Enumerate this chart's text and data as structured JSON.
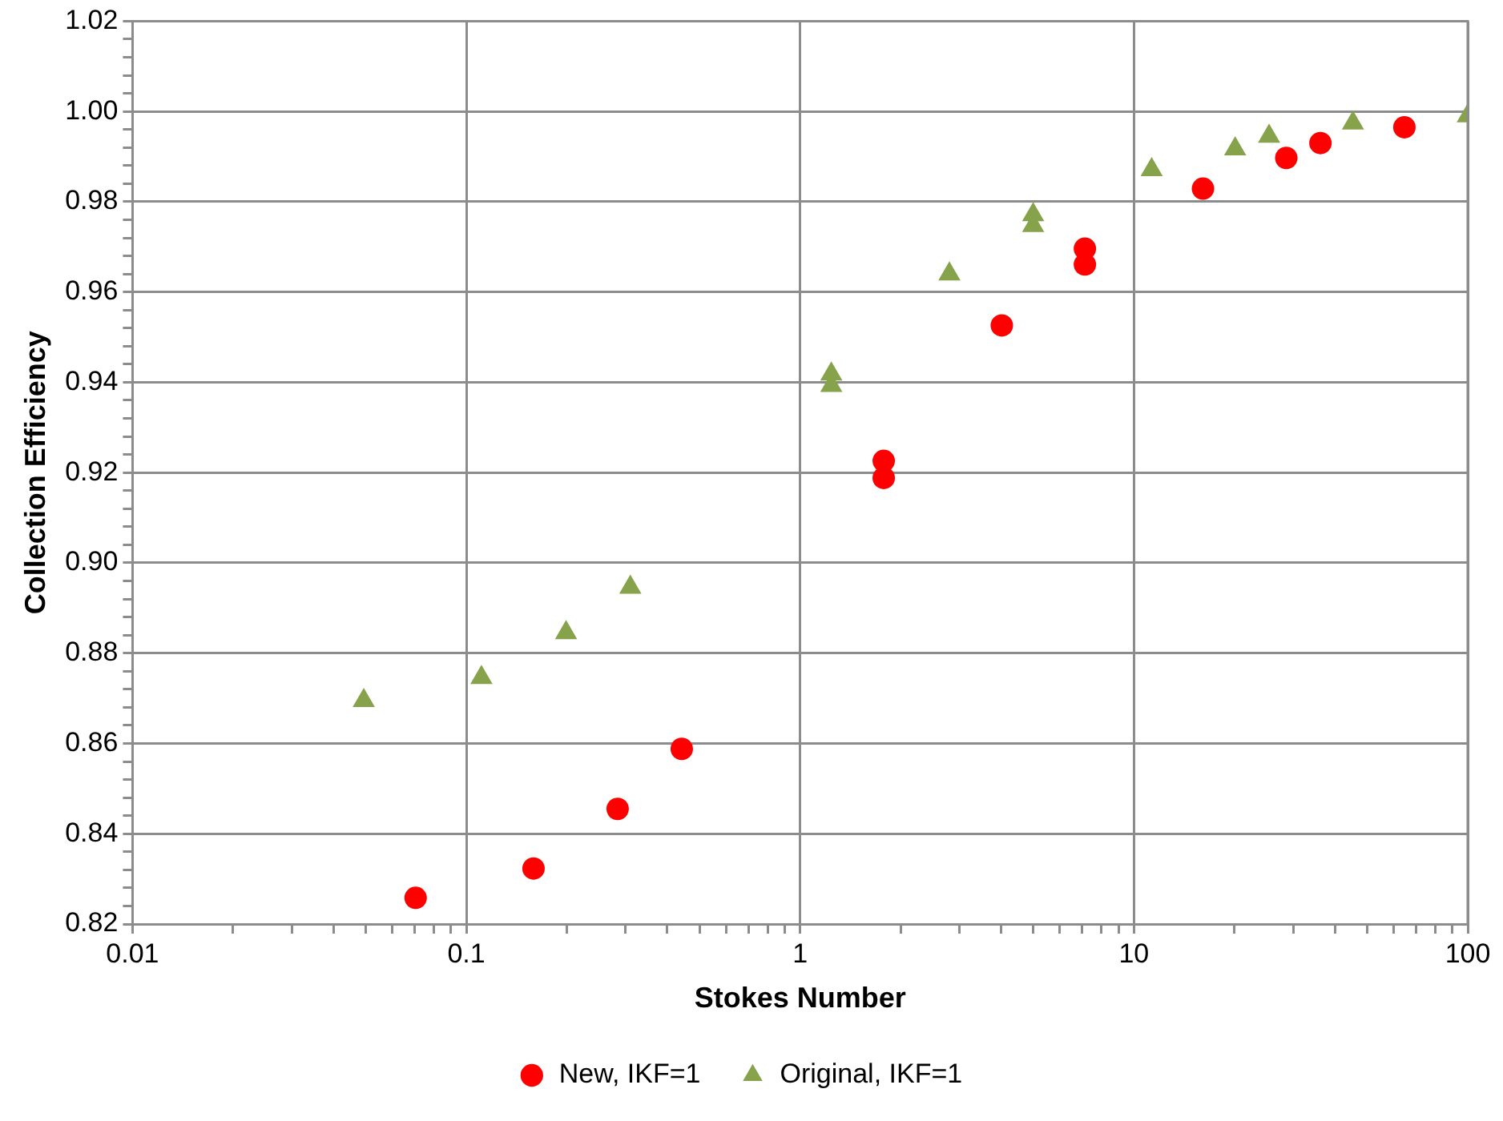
{
  "chart_data": {
    "type": "scatter",
    "xlabel": "Stokes Number",
    "ylabel": "Collection Efficiency",
    "log": "x",
    "grid": true,
    "legend": "bottom",
    "xlim": [
      0.01,
      100
    ],
    "ylim": [
      0.82,
      1.02
    ],
    "xticks": [
      0.01,
      {
        "value": 0.02,
        "label": null
      },
      {
        "value": 0.03,
        "label": null
      },
      {
        "value": 0.04,
        "label": null
      },
      {
        "value": 0.05,
        "label": null
      },
      {
        "value": 0.06,
        "label": null
      },
      {
        "value": 0.07,
        "label": null
      },
      {
        "value": 0.08,
        "label": null
      },
      {
        "value": 0.09,
        "label": null
      },
      0.1,
      {
        "value": 0.2,
        "label": null
      },
      {
        "value": 0.3,
        "label": null
      },
      {
        "value": 0.4,
        "label": null
      },
      {
        "value": 0.5,
        "label": null
      },
      {
        "value": 0.6,
        "label": null
      },
      {
        "value": 0.7,
        "label": null
      },
      {
        "value": 0.8,
        "label": null
      },
      {
        "value": 0.9,
        "label": null
      },
      1,
      {
        "value": 2,
        "label": null
      },
      {
        "value": 3,
        "label": null
      },
      {
        "value": 4,
        "label": null
      },
      {
        "value": 5,
        "label": null
      },
      {
        "value": 6,
        "label": null
      },
      {
        "value": 7,
        "label": null
      },
      {
        "value": 8,
        "label": null
      },
      {
        "value": 9,
        "label": null
      },
      10,
      {
        "value": 20,
        "label": null
      },
      {
        "value": 30,
        "label": null
      },
      {
        "value": 40,
        "label": null
      },
      {
        "value": 50,
        "label": null
      },
      {
        "value": 60,
        "label": null
      },
      {
        "value": 70,
        "label": null
      },
      {
        "value": 80,
        "label": null
      },
      {
        "value": 90,
        "label": null
      },
      100
    ],
    "yticks": [
      0.82,
      {
        "value": 0.824,
        "label": null
      },
      {
        "value": 0.828,
        "label": null
      },
      {
        "value": 0.832,
        "label": null
      },
      {
        "value": 0.836,
        "label": null
      },
      0.84,
      {
        "value": 0.844,
        "label": null
      },
      {
        "value": 0.848,
        "label": null
      },
      {
        "value": 0.852,
        "label": null
      },
      {
        "value": 0.856,
        "label": null
      },
      0.86,
      {
        "value": 0.864,
        "label": null
      },
      {
        "value": 0.868,
        "label": null
      },
      {
        "value": 0.872,
        "label": null
      },
      {
        "value": 0.876,
        "label": null
      },
      0.88,
      {
        "value": 0.884,
        "label": null
      },
      {
        "value": 0.888,
        "label": null
      },
      {
        "value": 0.892,
        "label": null
      },
      {
        "value": 0.896,
        "label": null
      },
      {
        "value": 0.9,
        "label": "0.90"
      },
      {
        "value": 0.904,
        "label": null
      },
      {
        "value": 0.908,
        "label": null
      },
      {
        "value": 0.912,
        "label": null
      },
      {
        "value": 0.916,
        "label": null
      },
      0.92,
      {
        "value": 0.924,
        "label": null
      },
      {
        "value": 0.928,
        "label": null
      },
      {
        "value": 0.932,
        "label": null
      },
      {
        "value": 0.936,
        "label": null
      },
      0.94,
      {
        "value": 0.944,
        "label": null
      },
      {
        "value": 0.948,
        "label": null
      },
      {
        "value": 0.952,
        "label": null
      },
      {
        "value": 0.956,
        "label": null
      },
      0.96,
      {
        "value": 0.964,
        "label": null
      },
      {
        "value": 0.968,
        "label": null
      },
      {
        "value": 0.972,
        "label": null
      },
      {
        "value": 0.976,
        "label": null
      },
      0.98,
      {
        "value": 0.984,
        "label": null
      },
      {
        "value": 0.988,
        "label": null
      },
      {
        "value": 0.992,
        "label": null
      },
      {
        "value": 0.996,
        "label": null
      },
      {
        "value": 1,
        "label": "1.00"
      },
      {
        "value": 1.004,
        "label": null
      },
      {
        "value": 1.008,
        "label": null
      },
      {
        "value": 1.012,
        "label": null
      },
      {
        "value": 1.016,
        "label": null
      },
      1.02
    ],
    "series": [
      {
        "name": "New, IKF=1",
        "color": "#ff0000",
        "marker": "circle",
        "x": [
          0.0705,
          0.159,
          0.284,
          0.442,
          1.78,
          1.78,
          4.02,
          7.13,
          7.13,
          16.1,
          28.6,
          36.2,
          64.6
        ],
        "values": [
          0.8258,
          0.8323,
          0.8455,
          0.8588,
          0.9226,
          0.9188,
          0.9526,
          0.9696,
          0.9661,
          0.9829,
          0.9897,
          0.993,
          0.9965
        ]
      },
      {
        "name": "Original, IKF=1",
        "color": "#86a24a",
        "marker": "triangle",
        "x": [
          0.0493,
          0.111,
          0.199,
          0.31,
          1.24,
          1.24,
          2.8,
          4.99,
          4.99,
          11.3,
          20.1,
          25.4,
          45.3,
          100
        ],
        "values": [
          0.8695,
          0.8746,
          0.8845,
          0.8946,
          0.9418,
          0.9393,
          0.964,
          0.9771,
          0.9747,
          0.9871,
          0.9917,
          0.9945,
          0.9974,
          0.999
        ]
      }
    ]
  }
}
